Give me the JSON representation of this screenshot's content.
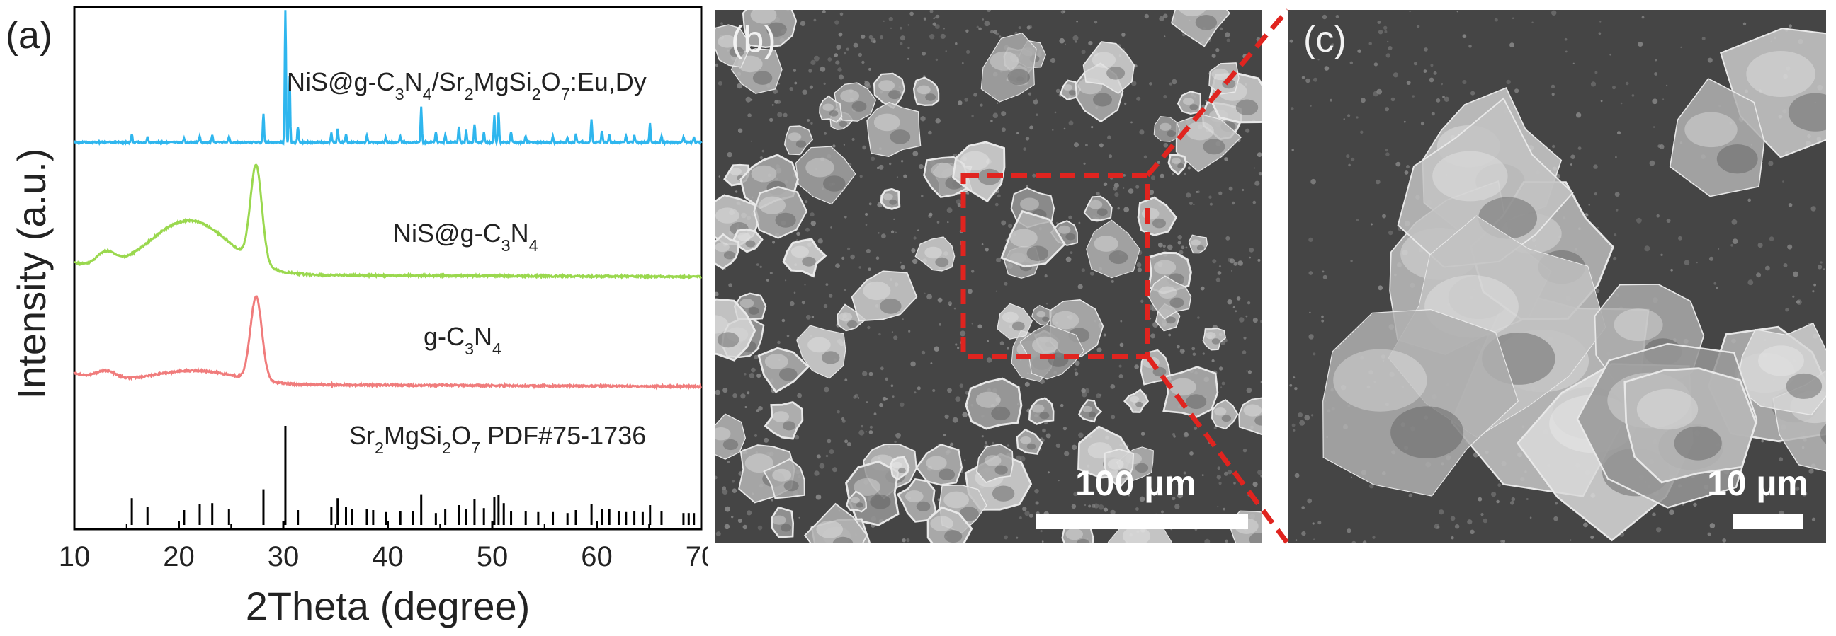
{
  "panels": {
    "a": "(a)",
    "b": "(b)",
    "c": "(c)"
  },
  "chart_data": {
    "type": "line",
    "xlabel": "2Theta (degree)",
    "ylabel": "Intensity (a.u.)",
    "xlim": [
      10,
      70
    ],
    "xticks": [
      10,
      20,
      30,
      40,
      50,
      60,
      70
    ],
    "grid": false,
    "series": [
      {
        "name": "Sr2MgSi2O7 PDF#75-1736",
        "label_parts": [
          [
            "Sr",
            ""
          ],
          [
            "2",
            "sub"
          ],
          [
            "MgSi",
            ""
          ],
          [
            "2",
            "sub"
          ],
          [
            "O",
            ""
          ],
          [
            "7",
            "sub"
          ],
          [
            " PDF#75-1736",
            ""
          ]
        ],
        "color": "#000000",
        "kind": "stick",
        "peaks": [
          [
            15.5,
            0.27
          ],
          [
            17.0,
            0.18
          ],
          [
            20.5,
            0.15
          ],
          [
            22.0,
            0.21
          ],
          [
            23.2,
            0.22
          ],
          [
            24.8,
            0.16
          ],
          [
            28.1,
            0.36
          ],
          [
            30.2,
            1.0
          ],
          [
            31.4,
            0.15
          ],
          [
            34.6,
            0.18
          ],
          [
            35.2,
            0.27
          ],
          [
            36.0,
            0.18
          ],
          [
            36.6,
            0.16
          ],
          [
            38.0,
            0.16
          ],
          [
            38.6,
            0.15
          ],
          [
            39.8,
            0.13
          ],
          [
            41.2,
            0.14
          ],
          [
            42.4,
            0.14
          ],
          [
            43.2,
            0.31
          ],
          [
            44.6,
            0.12
          ],
          [
            45.5,
            0.16
          ],
          [
            46.8,
            0.2
          ],
          [
            47.5,
            0.16
          ],
          [
            48.3,
            0.26
          ],
          [
            49.2,
            0.17
          ],
          [
            50.2,
            0.28
          ],
          [
            50.6,
            0.3
          ],
          [
            51.1,
            0.22
          ],
          [
            51.8,
            0.14
          ],
          [
            53.2,
            0.14
          ],
          [
            54.4,
            0.13
          ],
          [
            55.8,
            0.13
          ],
          [
            57.2,
            0.12
          ],
          [
            58.0,
            0.15
          ],
          [
            59.5,
            0.21
          ],
          [
            60.5,
            0.16
          ],
          [
            61.2,
            0.16
          ],
          [
            62.1,
            0.14
          ],
          [
            62.8,
            0.13
          ],
          [
            63.6,
            0.14
          ],
          [
            64.4,
            0.13
          ],
          [
            65.1,
            0.2
          ],
          [
            66.2,
            0.14
          ],
          [
            68.3,
            0.12
          ],
          [
            68.8,
            0.12
          ],
          [
            69.3,
            0.12
          ]
        ]
      },
      {
        "name": "g-C3N4",
        "label_parts": [
          [
            "g-C",
            ""
          ],
          [
            "3",
            "sub"
          ],
          [
            "N",
            ""
          ],
          [
            "4",
            "sub"
          ]
        ],
        "color": "#f07c7c",
        "kind": "profile",
        "baseline": 0.05,
        "humps": [
          [
            13.0,
            0.9,
            0.06
          ],
          [
            21.5,
            4.0,
            0.1
          ],
          [
            27.4,
            0.55,
            0.62
          ]
        ]
      },
      {
        "name": "NiS@g-C3N4",
        "label_parts": [
          [
            "NiS@g-C",
            ""
          ],
          [
            "3",
            "sub"
          ],
          [
            "N",
            ""
          ],
          [
            "4",
            "sub"
          ]
        ],
        "color": "#9ad84e",
        "kind": "profile",
        "baseline": 0.05,
        "humps": [
          [
            13.0,
            0.9,
            0.1
          ],
          [
            21.0,
            3.8,
            0.4
          ],
          [
            27.4,
            0.55,
            0.72
          ]
        ]
      },
      {
        "name": "NiS@g-C3N4/Sr2MgSi2O7:Eu,Dy",
        "label_parts": [
          [
            "NiS@g-C",
            ""
          ],
          [
            "3",
            "sub"
          ],
          [
            "N",
            ""
          ],
          [
            "4",
            "sub"
          ],
          [
            "/Sr",
            ""
          ],
          [
            "2",
            "sub"
          ],
          [
            "MgSi",
            ""
          ],
          [
            "2",
            "sub"
          ],
          [
            "O",
            ""
          ],
          [
            "7",
            "sub"
          ],
          [
            ":Eu,Dy",
            ""
          ]
        ],
        "color": "#2fb6ee",
        "kind": "sharp",
        "baseline": 0.02,
        "peaks": [
          [
            15.5,
            0.06
          ],
          [
            17.0,
            0.04
          ],
          [
            20.5,
            0.03
          ],
          [
            22.0,
            0.05
          ],
          [
            23.2,
            0.06
          ],
          [
            24.8,
            0.04
          ],
          [
            28.1,
            0.22
          ],
          [
            30.2,
            1.0
          ],
          [
            30.6,
            0.5
          ],
          [
            31.4,
            0.12
          ],
          [
            34.6,
            0.07
          ],
          [
            35.2,
            0.1
          ],
          [
            36.0,
            0.06
          ],
          [
            38.0,
            0.05
          ],
          [
            39.8,
            0.04
          ],
          [
            41.2,
            0.05
          ],
          [
            43.2,
            0.27
          ],
          [
            44.6,
            0.08
          ],
          [
            45.5,
            0.06
          ],
          [
            46.8,
            0.12
          ],
          [
            47.5,
            0.09
          ],
          [
            48.3,
            0.14
          ],
          [
            49.2,
            0.08
          ],
          [
            50.2,
            0.2
          ],
          [
            50.6,
            0.22
          ],
          [
            51.8,
            0.08
          ],
          [
            53.2,
            0.05
          ],
          [
            55.8,
            0.05
          ],
          [
            57.2,
            0.04
          ],
          [
            58.0,
            0.06
          ],
          [
            59.5,
            0.17
          ],
          [
            60.5,
            0.09
          ],
          [
            61.2,
            0.06
          ],
          [
            62.8,
            0.05
          ],
          [
            63.6,
            0.05
          ],
          [
            65.1,
            0.14
          ],
          [
            66.2,
            0.05
          ],
          [
            68.3,
            0.04
          ],
          [
            69.3,
            0.04
          ]
        ]
      }
    ]
  },
  "sem": {
    "b": {
      "scale_text": "100 µm"
    },
    "c": {
      "scale_text": "10 µm"
    }
  },
  "colors": {
    "zoom_box": "#e0241f"
  }
}
